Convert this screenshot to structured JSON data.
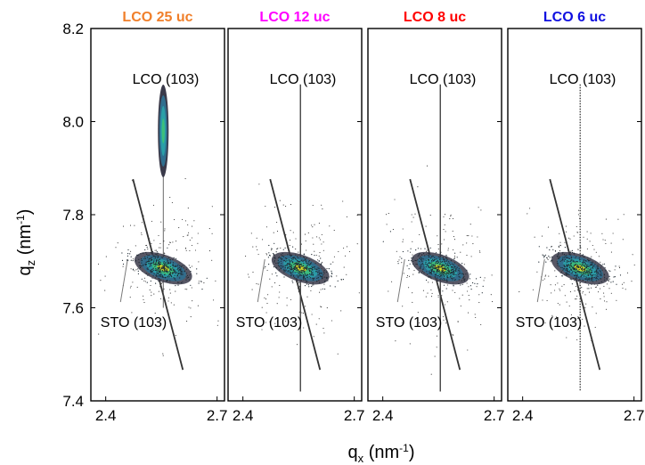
{
  "chart_data": {
    "type": "scatter",
    "description_axes": "reciprocal space maps around (103) reflections",
    "ylabel": "q",
    "ylabel_sub": "z",
    "ylabel_unit_open": " (nm",
    "ylabel_unit_sup": "-1",
    "ylabel_unit_close": ")",
    "xlabel": "q",
    "xlabel_sub": "x",
    "xlabel_unit_open": " (nm",
    "xlabel_unit_sup": "-1",
    "xlabel_unit_close": ")",
    "ylim": [
      7.4,
      8.2
    ],
    "xlim": [
      2.36,
      2.72
    ],
    "y_ticks": [
      "7.4",
      "7.6",
      "7.8",
      "8.0",
      "8.2"
    ],
    "y_tick_values": [
      7.4,
      7.6,
      7.8,
      8.0,
      8.2
    ],
    "x_ticks": [
      "2.4",
      "2.7"
    ],
    "x_tick_values": [
      2.4,
      2.7
    ],
    "panels": [
      {
        "title": "LCO 25 uc",
        "title_color": "#f07f2a",
        "lco_label": "LCO (103)",
        "sto_label": "STO (103)",
        "lco_peak": {
          "qx": 2.555,
          "qz": 7.98
        },
        "sto_peak": {
          "qx": 2.555,
          "qz": 7.685
        }
      },
      {
        "title": "LCO 12 uc",
        "title_color": "#ff00ff",
        "lco_label": "LCO (103)",
        "sto_label": "STO (103)",
        "lco_peak": {
          "qx": 2.555,
          "qz": 7.71
        },
        "sto_peak": {
          "qx": 2.555,
          "qz": 7.685
        }
      },
      {
        "title": "LCO 8 uc",
        "title_color": "#ff0000",
        "lco_label": "LCO (103)",
        "sto_label": "STO (103)",
        "lco_peak": {
          "qx": 2.555,
          "qz": 7.7
        },
        "sto_peak": {
          "qx": 2.555,
          "qz": 7.685
        }
      },
      {
        "title": "LCO 6 uc",
        "title_color": "#1010e0",
        "lco_label": "LCO (103)",
        "sto_label": "STO (103)",
        "lco_peak": {
          "qx": 2.555,
          "qz": 7.7
        },
        "sto_peak": {
          "qx": 2.555,
          "qz": 7.685
        }
      }
    ],
    "colormap": [
      "#3a3a4a",
      "#2f6f8f",
      "#2aa0a8",
      "#3dc07a",
      "#e8e020"
    ],
    "grid": false
  }
}
